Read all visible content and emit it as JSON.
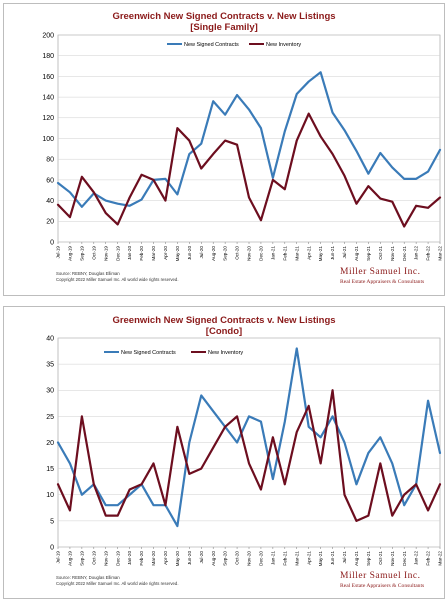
{
  "colors": {
    "new_signed": "#3a7bb8",
    "new_inventory": "#6d0e1f",
    "grid": "#cfcfcf"
  },
  "chart_data": [
    {
      "type": "line",
      "title": "Greenwich New Signed Contracts v. New Listings",
      "subtitle": "[Single Family]",
      "ylim": [
        0,
        200
      ],
      "yticks": [
        0,
        20,
        40,
        60,
        80,
        100,
        120,
        140,
        160,
        180,
        200
      ],
      "grid": true,
      "legend_placement": "top-center",
      "categories": [
        "Jul-19",
        "Aug-19",
        "Sep-19",
        "Oct-19",
        "Nov-19",
        "Dec-19",
        "Jan-20",
        "Feb-20",
        "Mar-20",
        "Apr-20",
        "May-20",
        "Jun-20",
        "Jul-20",
        "Aug-20",
        "Sep-20",
        "Oct-20",
        "Nov-20",
        "Dec-20",
        "Jan-21",
        "Feb-21",
        "Mar-21",
        "Apr-21",
        "May-21",
        "Jun-21",
        "Jul-21",
        "Aug-21",
        "Sep-21",
        "Oct-21",
        "Nov-21",
        "Dec-21",
        "Jan-22",
        "Feb-22",
        "Mar-22"
      ],
      "series": [
        {
          "name": "New Signed Contracts",
          "values": [
            57,
            48,
            34,
            47,
            40,
            37,
            35,
            41,
            60,
            61,
            46,
            85,
            95,
            136,
            123,
            142,
            128,
            110,
            62,
            107,
            143,
            155,
            164,
            125,
            108,
            88,
            66,
            86,
            72,
            61,
            61,
            68,
            89
          ]
        },
        {
          "name": "New Inventory",
          "values": [
            36,
            24,
            63,
            48,
            28,
            17,
            43,
            65,
            60,
            40,
            110,
            98,
            71,
            85,
            98,
            94,
            43,
            21,
            60,
            51,
            98,
            124,
            102,
            85,
            64,
            37,
            54,
            42,
            39,
            15,
            35,
            33,
            43
          ]
        }
      ],
      "source": "Source: REBNY, Douglas Elliman",
      "copyright": "Copyright 2022 Miller Samuel Inc. All world wide rights reserved."
    },
    {
      "type": "line",
      "title": "Greenwich New Signed Contracts v. New Listings",
      "subtitle": "[Condo]",
      "ylim": [
        0,
        40
      ],
      "yticks": [
        0,
        5,
        10,
        15,
        20,
        25,
        30,
        35,
        40
      ],
      "grid": true,
      "legend_placement": "top-center",
      "categories": [
        "Jul-19",
        "Aug-19",
        "Sep-19",
        "Oct-19",
        "Nov-19",
        "Dec-19",
        "Jan-20",
        "Feb-20",
        "Mar-20",
        "Apr-20",
        "May-20",
        "Jun-20",
        "Jul-20",
        "Aug-20",
        "Sep-20",
        "Oct-20",
        "Nov-20",
        "Dec-20",
        "Jan-21",
        "Feb-21",
        "Mar-21",
        "Apr-21",
        "May-21",
        "Jun-21",
        "Jul-21",
        "Aug-21",
        "Sep-21",
        "Oct-21",
        "Nov-21",
        "Dec-21",
        "Jan-22",
        "Feb-22",
        "Mar-22"
      ],
      "series": [
        {
          "name": "New Signed Contracts",
          "values": [
            20,
            16,
            10,
            12,
            8,
            8,
            10,
            12,
            8,
            8,
            4,
            20,
            29,
            26,
            23,
            20,
            25,
            24,
            13,
            24,
            38,
            23,
            21,
            25,
            20,
            12,
            18,
            21,
            16,
            8,
            12,
            28,
            18
          ]
        },
        {
          "name": "New Inventory",
          "values": [
            12,
            7,
            25,
            12,
            6,
            6,
            11,
            12,
            16,
            8,
            23,
            14,
            15,
            19,
            23,
            25,
            16,
            11,
            21,
            12,
            22,
            27,
            16,
            30,
            10,
            5,
            6,
            16,
            6,
            10,
            12,
            7,
            12
          ]
        }
      ],
      "source": "Source: REBNY, Douglas Elliman",
      "copyright": "Copyright 2022 Miller Samuel Inc. All world wide rights reserved."
    }
  ],
  "brand": {
    "name": "Miller Samuel Inc.",
    "tagline": "Real Estate Appraisers & Consultants"
  }
}
